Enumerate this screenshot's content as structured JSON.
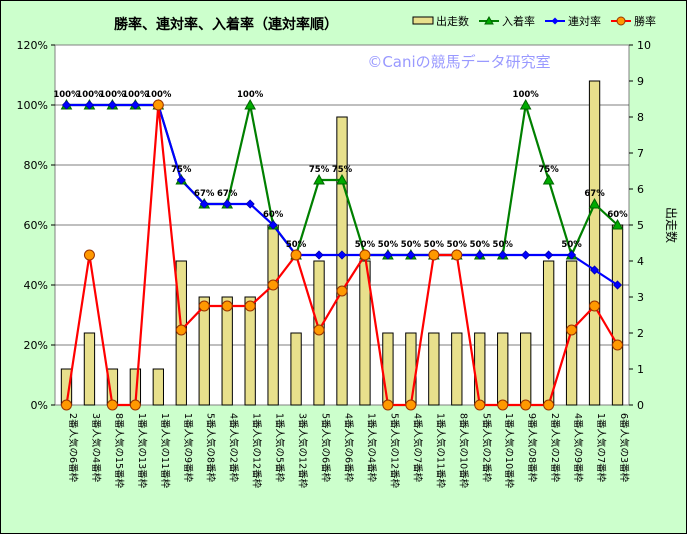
{
  "chart_data": {
    "type": "bar+line",
    "title": "勝率、連対率、入着率（連対率順）",
    "watermark": "©Caniの競馬データ研究室",
    "y2label": "出走数",
    "ylim": [
      0,
      120
    ],
    "y2lim": [
      0,
      10
    ],
    "yticks": [
      "0%",
      "20%",
      "40%",
      "60%",
      "80%",
      "100%",
      "120%"
    ],
    "y2ticks": [
      "0",
      "1",
      "2",
      "3",
      "4",
      "5",
      "6",
      "7",
      "8",
      "9",
      "10"
    ],
    "legend_position": "top-right",
    "categories": [
      "2番人気の6番枠",
      "3番人気の4番枠",
      "8番人気の15番枠",
      "1番人気の13番枠",
      "1番人気の11番枠",
      "1番人気の9番枠",
      "5番人気の8番枠",
      "4番人気の2番枠",
      "1番人気の12番枠",
      "1番人気の5番枠",
      "3番人気の12番枠",
      "5番人気の6番枠",
      "4番人気の6番枠",
      "1番人気の4番枠",
      "5番人気の12番枠",
      "4番人気の7番枠",
      "1番人気の11番枠",
      "8番人気の10番枠",
      "5番人気の2番枠",
      "1番人気の10番枠",
      "9番人気の8番枠",
      "2番人気の2番枠",
      "4番人気の9番枠",
      "1番人気の7番枠",
      "6番人気の3番枠"
    ],
    "series": [
      {
        "name": "出走数",
        "type": "bar",
        "axis": "right",
        "color": "#e8e08c",
        "values": [
          1,
          2,
          1,
          1,
          1,
          4,
          3,
          3,
          3,
          5,
          2,
          4,
          8,
          4,
          2,
          2,
          2,
          2,
          2,
          2,
          2,
          4,
          4,
          9,
          5
        ]
      },
      {
        "name": "入着率",
        "type": "line",
        "axis": "left",
        "color": "#008000",
        "marker": "triangle",
        "values": [
          100,
          100,
          100,
          100,
          100,
          75,
          67,
          67,
          100,
          60,
          50,
          75,
          75,
          50,
          50,
          50,
          50,
          50,
          50,
          50,
          100,
          75,
          50,
          67,
          60
        ]
      },
      {
        "name": "連対率",
        "type": "line",
        "axis": "left",
        "color": "#0000ff",
        "marker": "diamond",
        "values": [
          100,
          100,
          100,
          100,
          100,
          75,
          67,
          67,
          67,
          60,
          50,
          50,
          50,
          50,
          50,
          50,
          50,
          50,
          50,
          50,
          50,
          50,
          50,
          45,
          40
        ]
      },
      {
        "name": "勝率",
        "type": "line",
        "axis": "left",
        "color": "#ff0000",
        "marker": "circle",
        "values": [
          0,
          50,
          0,
          0,
          100,
          25,
          33,
          33,
          33,
          40,
          50,
          25,
          38,
          50,
          0,
          0,
          50,
          50,
          0,
          0,
          0,
          0,
          25,
          33,
          20
        ]
      }
    ],
    "data_labels": [
      "100%",
      "100%",
      "100%",
      "100%",
      "100%",
      "75%",
      "67%",
      "67%",
      "100%",
      "60%",
      "50%",
      "75%",
      "75%",
      "50%",
      "50%",
      "50%",
      "50%",
      "50%",
      "50%",
      "50%",
      "100%",
      "75%",
      "50%",
      "67%",
      "60%"
    ]
  }
}
